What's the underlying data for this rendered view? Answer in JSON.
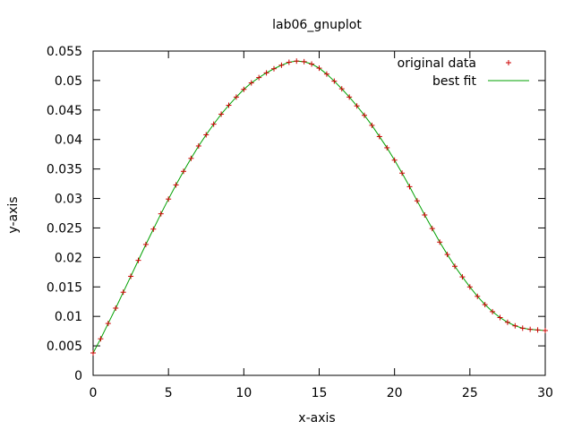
{
  "chart_data": {
    "type": "scatter",
    "title": "lab06_gnuplot",
    "xlabel": "x-axis",
    "ylabel": "y-axis",
    "xlim": [
      0,
      30
    ],
    "ylim": [
      0,
      0.055
    ],
    "xticks": [
      "0",
      "5",
      "10",
      "15",
      "20",
      "25",
      "30"
    ],
    "yticks": [
      "0",
      "0.005",
      "0.01",
      "0.015",
      "0.02",
      "0.025",
      "0.03",
      "0.035",
      "0.04",
      "0.045",
      "0.05",
      "0.055"
    ],
    "grid": false,
    "legend_position": "top-right",
    "series": [
      {
        "name": "original data",
        "marker": "plus",
        "color": "#cc0000",
        "x": [
          0,
          0.5,
          1,
          1.5,
          2,
          2.5,
          3,
          3.5,
          4,
          4.5,
          5,
          5.5,
          6,
          6.5,
          7,
          7.5,
          8,
          8.5,
          9,
          9.5,
          10,
          10.5,
          11,
          11.5,
          12,
          12.5,
          13,
          13.5,
          14,
          14.5,
          15,
          15.5,
          16,
          16.5,
          17,
          17.5,
          18,
          18.5,
          19,
          19.5,
          20,
          20.5,
          21,
          21.5,
          22,
          22.5,
          23,
          23.5,
          24,
          24.5,
          25,
          25.5,
          26,
          26.5,
          27,
          27.5,
          28,
          28.5,
          29,
          29.5,
          30
        ],
        "y": [
          0.0038,
          0.0062,
          0.0088,
          0.0114,
          0.0141,
          0.0168,
          0.0195,
          0.0222,
          0.0248,
          0.0274,
          0.0299,
          0.0323,
          0.0346,
          0.0368,
          0.0389,
          0.0408,
          0.0426,
          0.0443,
          0.0458,
          0.0472,
          0.0485,
          0.0496,
          0.0505,
          0.0513,
          0.052,
          0.0526,
          0.0531,
          0.0533,
          0.0532,
          0.0528,
          0.0521,
          0.0511,
          0.0499,
          0.0486,
          0.0472,
          0.0457,
          0.0441,
          0.0424,
          0.0405,
          0.0386,
          0.0365,
          0.0343,
          0.032,
          0.0296,
          0.0272,
          0.0249,
          0.0226,
          0.0205,
          0.0185,
          0.0167,
          0.015,
          0.0134,
          0.012,
          0.0108,
          0.0098,
          0.009,
          0.0084,
          0.008,
          0.0078,
          0.0077,
          0.0076
        ]
      },
      {
        "name": "best fit",
        "marker": "line",
        "color": "#00a000",
        "x": [
          0,
          0.5,
          1,
          1.5,
          2,
          2.5,
          3,
          3.5,
          4,
          4.5,
          5,
          5.5,
          6,
          6.5,
          7,
          7.5,
          8,
          8.5,
          9,
          9.5,
          10,
          10.5,
          11,
          11.5,
          12,
          12.5,
          13,
          13.5,
          14,
          14.5,
          15,
          15.5,
          16,
          16.5,
          17,
          17.5,
          18,
          18.5,
          19,
          19.5,
          20,
          20.5,
          21,
          21.5,
          22,
          22.5,
          23,
          23.5,
          24,
          24.5,
          25,
          25.5,
          26,
          26.5,
          27,
          27.5,
          28,
          28.5,
          29,
          29.5,
          30
        ],
        "y": [
          0.0038,
          0.0062,
          0.0088,
          0.0114,
          0.0141,
          0.0168,
          0.0195,
          0.0222,
          0.0248,
          0.0274,
          0.0299,
          0.0323,
          0.0346,
          0.0368,
          0.0389,
          0.0408,
          0.0426,
          0.0443,
          0.0458,
          0.0472,
          0.0485,
          0.0496,
          0.0505,
          0.0513,
          0.052,
          0.0526,
          0.0531,
          0.0533,
          0.0532,
          0.0528,
          0.0521,
          0.0511,
          0.0499,
          0.0486,
          0.0472,
          0.0457,
          0.0441,
          0.0424,
          0.0405,
          0.0386,
          0.0365,
          0.0343,
          0.032,
          0.0296,
          0.0272,
          0.0249,
          0.0226,
          0.0205,
          0.0185,
          0.0167,
          0.015,
          0.0134,
          0.012,
          0.0108,
          0.0098,
          0.009,
          0.0084,
          0.008,
          0.0078,
          0.0077,
          0.0076
        ]
      }
    ]
  }
}
